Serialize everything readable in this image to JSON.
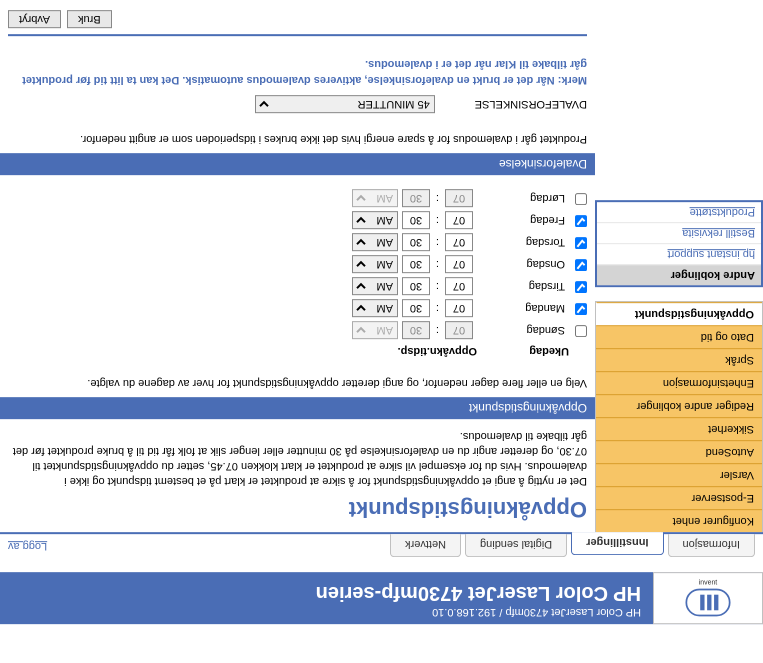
{
  "banner": {
    "subtitle": "HP Color LaserJet 4730mfp / 192.168.0.10",
    "title": "HP Color LaserJet 4730mfp-serien",
    "invent": "invent"
  },
  "tabs": {
    "items": [
      "Informasjon",
      "Innstillinger",
      "Digital sending",
      "Nettverk"
    ],
    "active_index": 1,
    "logoff": "Logg av"
  },
  "sidebar": {
    "items": [
      "Konfigurer enhet",
      "E-postserver",
      "Varsler",
      "AutoSend",
      "Sikkerhet",
      "Rediger andre koblinger",
      "Enhetsinformasjon",
      "Språk",
      "Dato og tid",
      "Oppvåkningstidspunkt"
    ],
    "active_index": 9
  },
  "links_box": {
    "heading": "Andre koblinger",
    "items": [
      "hp instant support",
      "Bestill rekvisita",
      "Produktstøtte"
    ]
  },
  "page": {
    "title": "Oppvåkningstidspunkt",
    "intro": "Det er nyttig å angi et oppvåkningstidspunkt for å sikre at produktet er klart på et bestemt tidspunkt og ikke i dvalemodus. Hvis du for eksempel vil sikre at produktet er klart klokken 07.45, setter du oppvåkningstidspunktet til 07.30, og deretter angir du en dvaleforsinkelse på 30 minutter eller lenger slik at folk får tid til å bruke produktet før det går tilbake til dvalemodus.",
    "wake_section": {
      "heading": "Oppvåkningstidspunkt",
      "desc": "Velg en eller flere dager nedenfor, og angi deretter oppvåkningstidspunkt for hver av dagene du valgte.",
      "col1": "Ukedag",
      "col2": "Oppvåkn.tidsp.",
      "days": [
        {
          "label": "Søndag",
          "checked": false,
          "hh": "07",
          "mm": "30",
          "ampm": "AM",
          "enabled": false
        },
        {
          "label": "Mandag",
          "checked": true,
          "hh": "07",
          "mm": "30",
          "ampm": "AM",
          "enabled": true
        },
        {
          "label": "Tirsdag",
          "checked": true,
          "hh": "07",
          "mm": "30",
          "ampm": "AM",
          "enabled": true
        },
        {
          "label": "Onsdag",
          "checked": true,
          "hh": "07",
          "mm": "30",
          "ampm": "AM",
          "enabled": true
        },
        {
          "label": "Torsdag",
          "checked": true,
          "hh": "07",
          "mm": "30",
          "ampm": "AM",
          "enabled": true
        },
        {
          "label": "Fredag",
          "checked": true,
          "hh": "07",
          "mm": "30",
          "ampm": "AM",
          "enabled": true
        },
        {
          "label": "Lørdag",
          "checked": false,
          "hh": "07",
          "mm": "30",
          "ampm": "AM",
          "enabled": false
        }
      ]
    },
    "sleep_section": {
      "heading": "Dvaleforsinkelse",
      "desc": "Produktet går i dvalemodus for å spare energi hvis det ikke brukes i tidsperioden som er angitt nedenfor.",
      "field_label": "DVALEFORSINKELSE",
      "selected": "45 MINUTTER",
      "note": "Merk: Når det er brukt en dvaleforsinkelse, aktiveres dvalemodus automatisk. Det kan ta litt tid før produktet går tilbake til Klar når det er i dvalemodus."
    },
    "buttons": {
      "apply": "Bruk",
      "cancel": "Avbryt"
    }
  }
}
